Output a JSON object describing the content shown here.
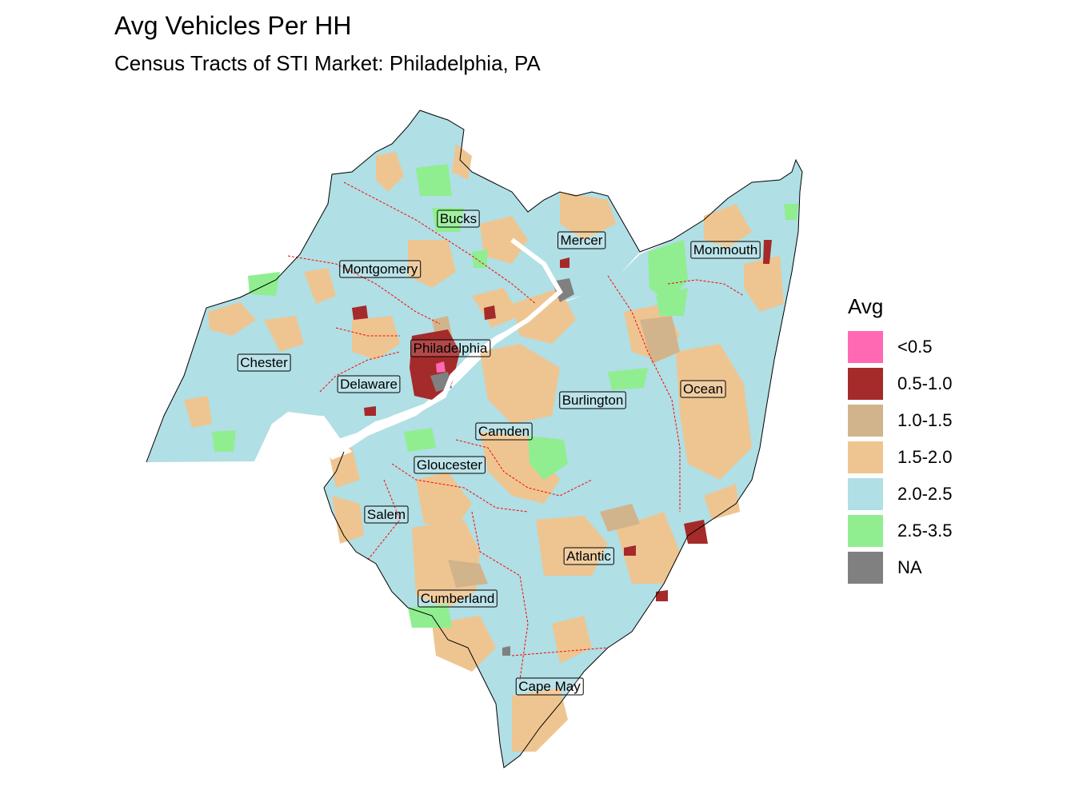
{
  "title": "Avg Vehicles Per HH",
  "subtitle": "Census Tracts of STI Market: Philadelphia, PA",
  "legend": {
    "title": "Avg",
    "items": [
      {
        "label": "<0.5",
        "color": "#ff69b4"
      },
      {
        "label": "0.5-1.0",
        "color": "#a52a2a"
      },
      {
        "label": "1.0-1.5",
        "color": "#d2b48c"
      },
      {
        "label": "1.5-2.0",
        "color": "#eec591"
      },
      {
        "label": "2.0-2.5",
        "color": "#b0dfe5"
      },
      {
        "label": "2.5-3.5",
        "color": "#90ee90"
      },
      {
        "label": "NA",
        "color": "#808080"
      }
    ]
  },
  "counties": [
    {
      "name": "Bucks"
    },
    {
      "name": "Mercer"
    },
    {
      "name": "Monmouth"
    },
    {
      "name": "Montgomery"
    },
    {
      "name": "Philadelphia"
    },
    {
      "name": "Chester"
    },
    {
      "name": "Delaware"
    },
    {
      "name": "Burlington"
    },
    {
      "name": "Ocean"
    },
    {
      "name": "Camden"
    },
    {
      "name": "Gloucester"
    },
    {
      "name": "Salem"
    },
    {
      "name": "Atlantic"
    },
    {
      "name": "Cumberland"
    },
    {
      "name": "Cape May"
    }
  ]
}
